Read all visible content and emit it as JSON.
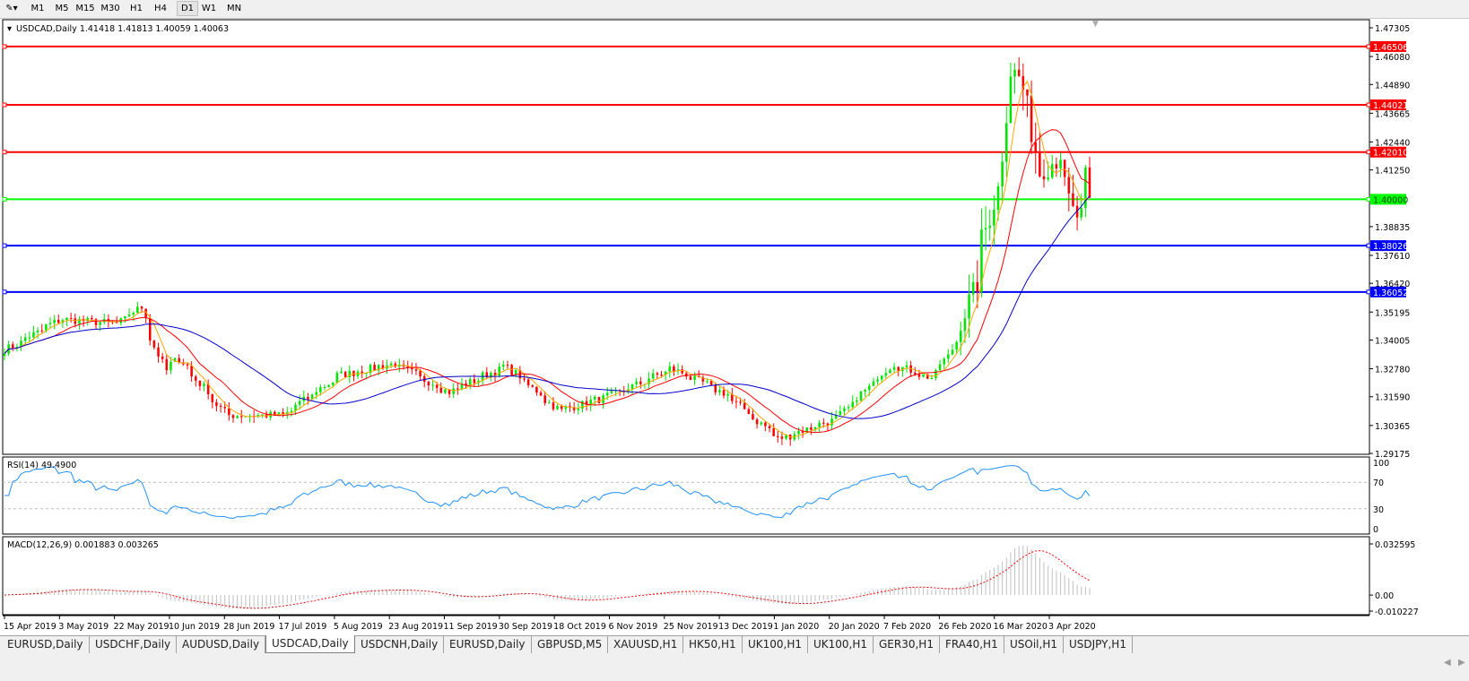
{
  "toolbar": {
    "timeframes": [
      "M1",
      "M5",
      "M15",
      "M30",
      "H1",
      "H4",
      "D1",
      "W1",
      "MN"
    ],
    "active": "D1"
  },
  "chart": {
    "header": "USDCAD,Daily  1.41418 1.41813 1.40059 1.40063",
    "symbol": "USDCAD",
    "timeframe": "Daily",
    "ohlc": {
      "open": "1.41418",
      "high": "1.41813",
      "low": "1.40059",
      "close": "1.40063"
    }
  },
  "chart_data": [
    {
      "type": "candlestick",
      "name": "USDCAD,Daily",
      "ylim": [
        1.29175,
        1.47305
      ],
      "y_ticks": [
        "1.47305",
        "1.46080",
        "1.44890",
        "1.43665",
        "1.42440",
        "1.41250",
        "1.38835",
        "1.37610",
        "1.36420",
        "1.35195",
        "1.34005",
        "1.32780",
        "1.31590",
        "1.30365",
        "1.29175"
      ],
      "x_ticks": [
        "15 Apr 2019",
        "3 May 2019",
        "22 May 2019",
        "10 Jun 2019",
        "28 Jun 2019",
        "17 Jul 2019",
        "5 Aug 2019",
        "23 Aug 2019",
        "11 Sep 2019",
        "30 Sep 2019",
        "18 Oct 2019",
        "6 Nov 2019",
        "25 Nov 2019",
        "13 Dec 2019",
        "1 Jan 2020",
        "20 Jan 2020",
        "7 Feb 2020",
        "26 Feb 2020",
        "16 Mar 2020",
        "3 Apr 2020"
      ],
      "approx_close_path": [
        [
          "2019-04-15",
          1.336
        ],
        [
          "2019-05-03",
          1.349
        ],
        [
          "2019-05-22",
          1.347
        ],
        [
          "2019-05-30",
          1.354
        ],
        [
          "2019-06-07",
          1.327
        ],
        [
          "2019-06-12",
          1.332
        ],
        [
          "2019-06-28",
          1.308
        ],
        [
          "2019-07-17",
          1.308
        ],
        [
          "2019-08-05",
          1.325
        ],
        [
          "2019-08-23",
          1.33
        ],
        [
          "2019-09-11",
          1.318
        ],
        [
          "2019-09-30",
          1.329
        ],
        [
          "2019-10-18",
          1.31
        ],
        [
          "2019-11-06",
          1.317
        ],
        [
          "2019-11-25",
          1.328
        ],
        [
          "2019-12-13",
          1.317
        ],
        [
          "2019-12-31",
          1.298
        ],
        [
          "2020-01-20",
          1.307
        ],
        [
          "2020-02-07",
          1.33
        ],
        [
          "2020-02-20",
          1.324
        ],
        [
          "2020-02-26",
          1.333
        ],
        [
          "2020-03-05",
          1.359
        ],
        [
          "2020-03-09",
          1.382
        ],
        [
          "2020-03-12",
          1.399
        ],
        [
          "2020-03-16",
          1.42
        ],
        [
          "2020-03-18",
          1.455
        ],
        [
          "2020-03-23",
          1.447
        ],
        [
          "2020-03-27",
          1.412
        ],
        [
          "2020-04-01",
          1.416
        ],
        [
          "2020-04-03",
          1.42
        ],
        [
          "2020-04-08",
          1.394
        ],
        [
          "2020-04-10",
          1.392
        ],
        [
          "2020-04-13",
          1.408
        ],
        [
          "2020-04-14",
          1.40063
        ]
      ],
      "moving_averages": [
        {
          "color": "#ffa500"
        },
        {
          "color": "#ff0000"
        },
        {
          "color": "#0000cc"
        }
      ],
      "candle_colors": {
        "up": "#00e600",
        "down": "#ff0000"
      },
      "levels": [
        {
          "price": "1.46506",
          "color": "#ff0000"
        },
        {
          "price": "1.44021",
          "color": "#ff0000"
        },
        {
          "price": "1.42010",
          "color": "#ff0000"
        },
        {
          "price": "1.40000",
          "color": "#00ff00"
        },
        {
          "price": "1.38026",
          "color": "#0000ff"
        },
        {
          "price": "1.36052",
          "color": "#0000ff"
        }
      ]
    },
    {
      "type": "line",
      "name": "RSI(14) 49.4900",
      "label": "RSI(14) 49.4900",
      "ylim": [
        0,
        100
      ],
      "y_ticks": [
        "100",
        "70",
        "30",
        "0"
      ],
      "levels": [
        70,
        30
      ],
      "color": "#1e90ff",
      "last": 49.49
    },
    {
      "type": "bar",
      "name": "MACD(12,26,9) 0.001883 0.003265",
      "label": "MACD(12,26,9) 0.001883 0.003265",
      "ylim": [
        -0.010227,
        0.032595
      ],
      "y_ticks": [
        "0.032595",
        "0.00",
        "-0.010227"
      ],
      "macd": 0.001883,
      "signal": 0.003265,
      "histogram_color": "#c0c0c0",
      "signal_color": "#ff0000"
    }
  ],
  "tabs": [
    {
      "label": "EURUSD,Daily"
    },
    {
      "label": "USDCHF,Daily"
    },
    {
      "label": "AUDUSD,Daily"
    },
    {
      "label": "USDCAD,Daily",
      "active": true
    },
    {
      "label": "USDCNH,Daily"
    },
    {
      "label": "EURUSD,Daily"
    },
    {
      "label": "GBPUSD,M5"
    },
    {
      "label": "XAUUSD,H1"
    },
    {
      "label": "HK50,H1"
    },
    {
      "label": "UK100,H1"
    },
    {
      "label": "UK100,H1"
    },
    {
      "label": "GER30,H1"
    },
    {
      "label": "FRA40,H1"
    },
    {
      "label": "USOil,H1"
    },
    {
      "label": "USDJPY,H1"
    }
  ]
}
